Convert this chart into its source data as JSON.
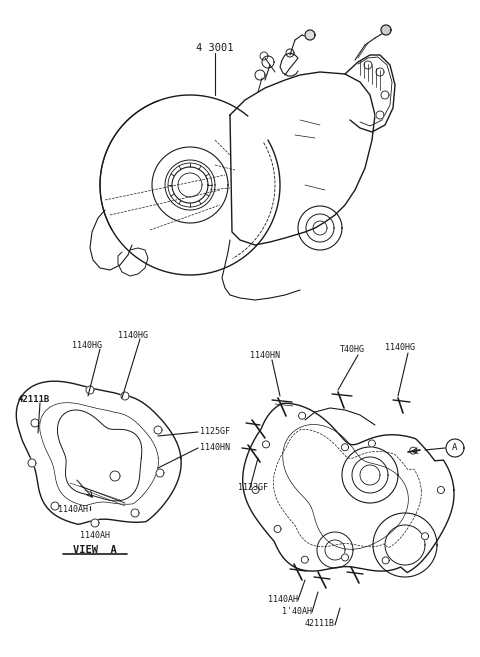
{
  "bg_color": "#ffffff",
  "fig_width": 4.8,
  "fig_height": 6.57,
  "dpi": 100,
  "line_color": "#1a1a1a",
  "labels": {
    "main_label": "4 3001",
    "left_view_label": "VIEW  A",
    "label_42111B_left": "42111B",
    "label_1140HG_left1": "1140HG",
    "label_1140HG_left2": "1140HG",
    "label_1140AH_left1": "1140AH",
    "label_1140AH_left2": "1140AH",
    "label_1125GF": "1125GF",
    "label_1140HN_left": "1140HN",
    "label_1140HN_right": "1140HN",
    "label_1140HG_right1": "1140HG",
    "label_1140HG_right2": "T40HG",
    "label_1123GF": "1123GF",
    "label_1140AH_right1": "1140AH",
    "label_1140AH_right2": "1'40AH",
    "label_42111B_right": "42111B",
    "label_A": "A"
  },
  "font_size_labels": 6.0,
  "font_size_view": 7.5
}
